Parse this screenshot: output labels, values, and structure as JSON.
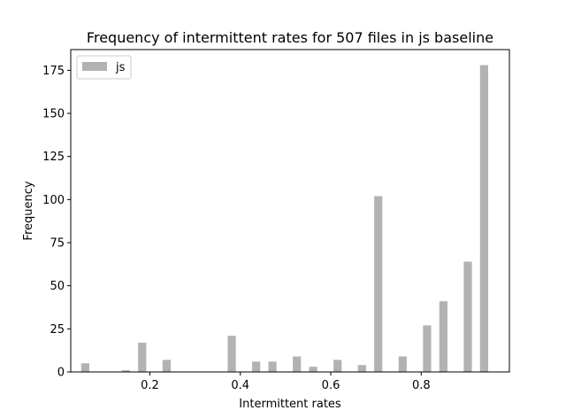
{
  "chart_data": {
    "type": "bar",
    "title": "Frequency of intermittent rates for 507 files in js baseline",
    "xlabel": "Intermittent rates",
    "ylabel": "Frequency",
    "xlim": [
      0.025,
      0.995
    ],
    "ylim": [
      0,
      187
    ],
    "xticks": [
      0.2,
      0.4,
      0.6,
      0.8
    ],
    "xtick_labels": [
      "0.2",
      "0.4",
      "0.6",
      "0.8"
    ],
    "yticks": [
      0,
      25,
      50,
      75,
      100,
      125,
      150,
      175
    ],
    "ytick_labels": [
      "0",
      "25",
      "50",
      "75",
      "100",
      "125",
      "150",
      "175"
    ],
    "bar_width": 0.018,
    "grid": false,
    "legend_position": "top-left",
    "series": [
      {
        "name": "js",
        "color": "#b2b2b2",
        "x": [
          0.057,
          0.147,
          0.183,
          0.237,
          0.381,
          0.435,
          0.471,
          0.525,
          0.561,
          0.615,
          0.669,
          0.705,
          0.759,
          0.813,
          0.849,
          0.903,
          0.939
        ],
        "values": [
          5,
          1,
          17,
          7,
          21,
          6,
          6,
          9,
          3,
          7,
          4,
          102,
          9,
          27,
          41,
          64,
          178
        ]
      }
    ]
  }
}
